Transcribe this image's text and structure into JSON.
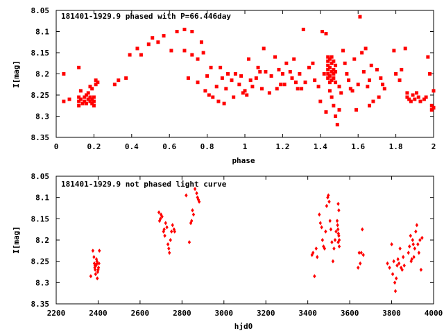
{
  "chart_data": [
    {
      "type": "scatter",
      "title": "181401-1929.9 phased with P=66.446day",
      "xlabel": "phase",
      "ylabel": "I[mag]",
      "xlim": [
        0,
        2
      ],
      "ylim": [
        8.35,
        8.05
      ],
      "y_inverted": true,
      "grid": false,
      "marker_color": "#ff0000",
      "xticks": [
        0,
        0.2,
        0.4,
        0.6,
        0.8,
        1,
        1.2,
        1.4,
        1.6,
        1.8,
        2
      ],
      "xtick_labels": [
        "0",
        "0.2",
        "0.4",
        "0.6",
        "0.8",
        "1",
        "1.2",
        "1.4",
        "1.6",
        "1.8",
        "2"
      ],
      "yticks": [
        8.05,
        8.1,
        8.15,
        8.2,
        8.25,
        8.3,
        8.35
      ],
      "ytick_labels": [
        "8.05",
        "8.1",
        "8.15",
        "8.2",
        "8.25",
        "8.3",
        "8.35"
      ],
      "points": [
        [
          0.04,
          8.2
        ],
        [
          0.04,
          8.265
        ],
        [
          0.07,
          8.26
        ],
        [
          0.12,
          8.185
        ],
        [
          0.12,
          8.255
        ],
        [
          0.12,
          8.265
        ],
        [
          0.12,
          8.275
        ],
        [
          0.13,
          8.24
        ],
        [
          0.13,
          8.26
        ],
        [
          0.14,
          8.27
        ],
        [
          0.15,
          8.255
        ],
        [
          0.15,
          8.265
        ],
        [
          0.16,
          8.25
        ],
        [
          0.16,
          8.27
        ],
        [
          0.17,
          8.245
        ],
        [
          0.17,
          8.26
        ],
        [
          0.18,
          8.255
        ],
        [
          0.18,
          8.265
        ],
        [
          0.19,
          8.26
        ],
        [
          0.19,
          8.27
        ],
        [
          0.2,
          8.255
        ],
        [
          0.2,
          8.265
        ],
        [
          0.2,
          8.275
        ],
        [
          0.18,
          8.23
        ],
        [
          0.19,
          8.235
        ],
        [
          0.21,
          8.225
        ],
        [
          0.22,
          8.22
        ],
        [
          0.21,
          8.215
        ],
        [
          0.31,
          8.225
        ],
        [
          0.33,
          8.215
        ],
        [
          0.37,
          8.21
        ],
        [
          0.39,
          8.155
        ],
        [
          0.43,
          8.14
        ],
        [
          0.45,
          8.155
        ],
        [
          0.49,
          8.13
        ],
        [
          0.51,
          8.115
        ],
        [
          0.54,
          8.125
        ],
        [
          0.57,
          8.11
        ],
        [
          0.61,
          8.145
        ],
        [
          0.64,
          8.1
        ],
        [
          0.68,
          8.095
        ],
        [
          0.68,
          8.145
        ],
        [
          0.7,
          8.21
        ],
        [
          0.72,
          8.1
        ],
        [
          0.72,
          8.155
        ],
        [
          0.75,
          8.22
        ],
        [
          0.75,
          8.165
        ],
        [
          0.77,
          8.125
        ],
        [
          0.78,
          8.15
        ],
        [
          0.79,
          8.24
        ],
        [
          0.8,
          8.205
        ],
        [
          0.81,
          8.25
        ],
        [
          0.82,
          8.185
        ],
        [
          0.83,
          8.255
        ],
        [
          0.85,
          8.23
        ],
        [
          0.86,
          8.265
        ],
        [
          0.87,
          8.185
        ],
        [
          0.88,
          8.21
        ],
        [
          0.89,
          8.27
        ],
        [
          0.9,
          8.235
        ],
        [
          0.91,
          8.2
        ],
        [
          0.93,
          8.215
        ],
        [
          0.94,
          8.255
        ],
        [
          0.95,
          8.2
        ],
        [
          0.97,
          8.225
        ],
        [
          0.98,
          8.205
        ],
        [
          0.99,
          8.245
        ],
        [
          1.0,
          8.24
        ],
        [
          1.01,
          8.25
        ],
        [
          1.02,
          8.165
        ],
        [
          1.03,
          8.215
        ],
        [
          1.04,
          8.23
        ],
        [
          1.06,
          8.21
        ],
        [
          1.07,
          8.185
        ],
        [
          1.08,
          8.195
        ],
        [
          1.09,
          8.235
        ],
        [
          1.1,
          8.14
        ],
        [
          1.11,
          8.195
        ],
        [
          1.13,
          8.245
        ],
        [
          1.14,
          8.205
        ],
        [
          1.16,
          8.16
        ],
        [
          1.17,
          8.235
        ],
        [
          1.18,
          8.19
        ],
        [
          1.19,
          8.225
        ],
        [
          1.2,
          8.2
        ],
        [
          1.21,
          8.225
        ],
        [
          1.22,
          8.175
        ],
        [
          1.24,
          8.195
        ],
        [
          1.25,
          8.21
        ],
        [
          1.26,
          8.165
        ],
        [
          1.27,
          8.22
        ],
        [
          1.28,
          8.235
        ],
        [
          1.29,
          8.2
        ],
        [
          1.3,
          8.235
        ],
        [
          1.31,
          8.095
        ],
        [
          1.32,
          8.22
        ],
        [
          1.34,
          8.185
        ],
        [
          1.36,
          8.175
        ],
        [
          1.37,
          8.215
        ],
        [
          1.39,
          8.23
        ],
        [
          1.4,
          8.265
        ],
        [
          1.41,
          8.1
        ],
        [
          1.42,
          8.2
        ],
        [
          1.43,
          8.105
        ],
        [
          1.43,
          8.29
        ],
        [
          1.44,
          8.16
        ],
        [
          1.44,
          8.17
        ],
        [
          1.44,
          8.18
        ],
        [
          1.44,
          8.19
        ],
        [
          1.44,
          8.2
        ],
        [
          1.44,
          8.21
        ],
        [
          1.45,
          8.165
        ],
        [
          1.45,
          8.185
        ],
        [
          1.45,
          8.205
        ],
        [
          1.45,
          8.22
        ],
        [
          1.46,
          8.16
        ],
        [
          1.46,
          8.175
        ],
        [
          1.46,
          8.195
        ],
        [
          1.46,
          8.215
        ],
        [
          1.47,
          8.17
        ],
        [
          1.47,
          8.19
        ],
        [
          1.47,
          8.2
        ],
        [
          1.47,
          8.21
        ],
        [
          1.48,
          8.18
        ],
        [
          1.48,
          8.195
        ],
        [
          1.48,
          8.22
        ],
        [
          1.45,
          8.24
        ],
        [
          1.46,
          8.255
        ],
        [
          1.47,
          8.275
        ],
        [
          1.48,
          8.3
        ],
        [
          1.49,
          8.32
        ],
        [
          1.5,
          8.285
        ],
        [
          1.5,
          8.23
        ],
        [
          1.51,
          8.245
        ],
        [
          1.52,
          8.145
        ],
        [
          1.53,
          8.175
        ],
        [
          1.54,
          8.2
        ],
        [
          1.55,
          8.215
        ],
        [
          1.56,
          8.235
        ],
        [
          1.57,
          8.24
        ],
        [
          1.58,
          8.165
        ],
        [
          1.59,
          8.285
        ],
        [
          1.6,
          8.225
        ],
        [
          1.61,
          8.065
        ],
        [
          1.62,
          8.15
        ],
        [
          1.63,
          8.195
        ],
        [
          1.64,
          8.14
        ],
        [
          1.65,
          8.23
        ],
        [
          1.66,
          8.215
        ],
        [
          1.66,
          8.275
        ],
        [
          1.67,
          8.18
        ],
        [
          1.68,
          8.265
        ],
        [
          1.7,
          8.19
        ],
        [
          1.71,
          8.255
        ],
        [
          1.72,
          8.21
        ],
        [
          1.73,
          8.225
        ],
        [
          1.74,
          8.235
        ],
        [
          1.79,
          8.145
        ],
        [
          1.8,
          8.2
        ],
        [
          1.82,
          8.215
        ],
        [
          1.83,
          8.19
        ],
        [
          1.85,
          8.14
        ],
        [
          1.86,
          8.245
        ],
        [
          1.86,
          8.255
        ],
        [
          1.87,
          8.26
        ],
        [
          1.88,
          8.265
        ],
        [
          1.89,
          8.25
        ],
        [
          1.9,
          8.26
        ],
        [
          1.91,
          8.245
        ],
        [
          1.92,
          8.255
        ],
        [
          1.93,
          8.265
        ],
        [
          1.95,
          8.26
        ],
        [
          1.96,
          8.255
        ],
        [
          1.97,
          8.16
        ],
        [
          1.98,
          8.2
        ],
        [
          1.99,
          8.275
        ],
        [
          1.99,
          8.285
        ],
        [
          2.0,
          8.24
        ],
        [
          2.0,
          8.28
        ]
      ]
    },
    {
      "type": "scatter",
      "title": "181401-1929.9 not phased light curve",
      "xlabel": "hjd0",
      "ylabel": "I[mag]",
      "xlim": [
        2200,
        4000
      ],
      "ylim": [
        8.35,
        8.05
      ],
      "y_inverted": true,
      "grid": false,
      "marker_color": "#ff0000",
      "xticks": [
        2200,
        2400,
        2600,
        2800,
        3000,
        3200,
        3400,
        3600,
        3800,
        4000
      ],
      "xtick_labels": [
        "2200",
        "2400",
        "2600",
        "2800",
        "3000",
        "3200",
        "3400",
        "3600",
        "3800",
        "4000"
      ],
      "yticks": [
        8.05,
        8.1,
        8.15,
        8.2,
        8.25,
        8.3,
        8.35
      ],
      "ytick_labels": [
        "8.05",
        "8.1",
        "8.15",
        "8.2",
        "8.25",
        "8.3",
        "8.35"
      ],
      "points": [
        [
          2365,
          8.285
        ],
        [
          2375,
          8.225
        ],
        [
          2380,
          8.24
        ],
        [
          2382,
          8.255
        ],
        [
          2384,
          8.265
        ],
        [
          2386,
          8.27
        ],
        [
          2388,
          8.28
        ],
        [
          2390,
          8.26
        ],
        [
          2392,
          8.245
        ],
        [
          2394,
          8.25
        ],
        [
          2396,
          8.29
        ],
        [
          2398,
          8.275
        ],
        [
          2400,
          8.27
        ],
        [
          2402,
          8.265
        ],
        [
          2404,
          8.255
        ],
        [
          2406,
          8.225
        ],
        [
          2385,
          8.26
        ],
        [
          2395,
          8.255
        ],
        [
          2690,
          8.135
        ],
        [
          2693,
          8.155
        ],
        [
          2697,
          8.15
        ],
        [
          2700,
          8.14
        ],
        [
          2705,
          8.145
        ],
        [
          2712,
          8.18
        ],
        [
          2715,
          8.175
        ],
        [
          2718,
          8.19
        ],
        [
          2722,
          8.16
        ],
        [
          2728,
          8.17
        ],
        [
          2733,
          8.21
        ],
        [
          2737,
          8.22
        ],
        [
          2740,
          8.23
        ],
        [
          2745,
          8.2
        ],
        [
          2750,
          8.18
        ],
        [
          2755,
          8.165
        ],
        [
          2762,
          8.175
        ],
        [
          2765,
          8.18
        ],
        [
          2820,
          8.095
        ],
        [
          2835,
          8.205
        ],
        [
          2842,
          8.16
        ],
        [
          2846,
          8.155
        ],
        [
          2850,
          8.13
        ],
        [
          2855,
          8.14
        ],
        [
          2862,
          8.08
        ],
        [
          2870,
          8.09
        ],
        [
          2874,
          8.1
        ],
        [
          2878,
          8.105
        ],
        [
          2882,
          8.11
        ],
        [
          3420,
          8.235
        ],
        [
          3425,
          8.23
        ],
        [
          3432,
          8.285
        ],
        [
          3440,
          8.22
        ],
        [
          3445,
          8.24
        ],
        [
          3455,
          8.14
        ],
        [
          3460,
          8.16
        ],
        [
          3466,
          8.17
        ],
        [
          3470,
          8.2
        ],
        [
          3475,
          8.215
        ],
        [
          3480,
          8.22
        ],
        [
          3485,
          8.18
        ],
        [
          3490,
          8.12
        ],
        [
          3495,
          8.1
        ],
        [
          3498,
          8.095
        ],
        [
          3502,
          8.11
        ],
        [
          3506,
          8.155
        ],
        [
          3510,
          8.175
        ],
        [
          3515,
          8.205
        ],
        [
          3520,
          8.25
        ],
        [
          3525,
          8.22
        ],
        [
          3530,
          8.2
        ],
        [
          3535,
          8.18
        ],
        [
          3540,
          8.155
        ],
        [
          3542,
          8.165
        ],
        [
          3544,
          8.175
        ],
        [
          3546,
          8.185
        ],
        [
          3548,
          8.19
        ],
        [
          3550,
          8.2
        ],
        [
          3545,
          8.205
        ],
        [
          3550,
          8.215
        ],
        [
          3548,
          8.13
        ],
        [
          3545,
          8.115
        ],
        [
          3640,
          8.265
        ],
        [
          3645,
          8.23
        ],
        [
          3650,
          8.255
        ],
        [
          3655,
          8.23
        ],
        [
          3660,
          8.175
        ],
        [
          3665,
          8.235
        ],
        [
          3780,
          8.255
        ],
        [
          3790,
          8.265
        ],
        [
          3800,
          8.21
        ],
        [
          3805,
          8.28
        ],
        [
          3810,
          8.25
        ],
        [
          3815,
          8.3
        ],
        [
          3818,
          8.32
        ],
        [
          3822,
          8.29
        ],
        [
          3826,
          8.26
        ],
        [
          3830,
          8.245
        ],
        [
          3835,
          8.255
        ],
        [
          3840,
          8.22
        ],
        [
          3845,
          8.265
        ],
        [
          3850,
          8.27
        ],
        [
          3855,
          8.24
        ],
        [
          3860,
          8.26
        ],
        [
          3880,
          8.23
        ],
        [
          3885,
          8.215
        ],
        [
          3890,
          8.19
        ],
        [
          3893,
          8.25
        ],
        [
          3896,
          8.245
        ],
        [
          3900,
          8.2
        ],
        [
          3903,
          8.21
        ],
        [
          3906,
          8.24
        ],
        [
          3910,
          8.22
        ],
        [
          3915,
          8.18
        ],
        [
          3920,
          8.165
        ],
        [
          3925,
          8.21
        ],
        [
          3930,
          8.23
        ],
        [
          3935,
          8.2
        ],
        [
          3940,
          8.27
        ],
        [
          3945,
          8.195
        ]
      ]
    }
  ]
}
